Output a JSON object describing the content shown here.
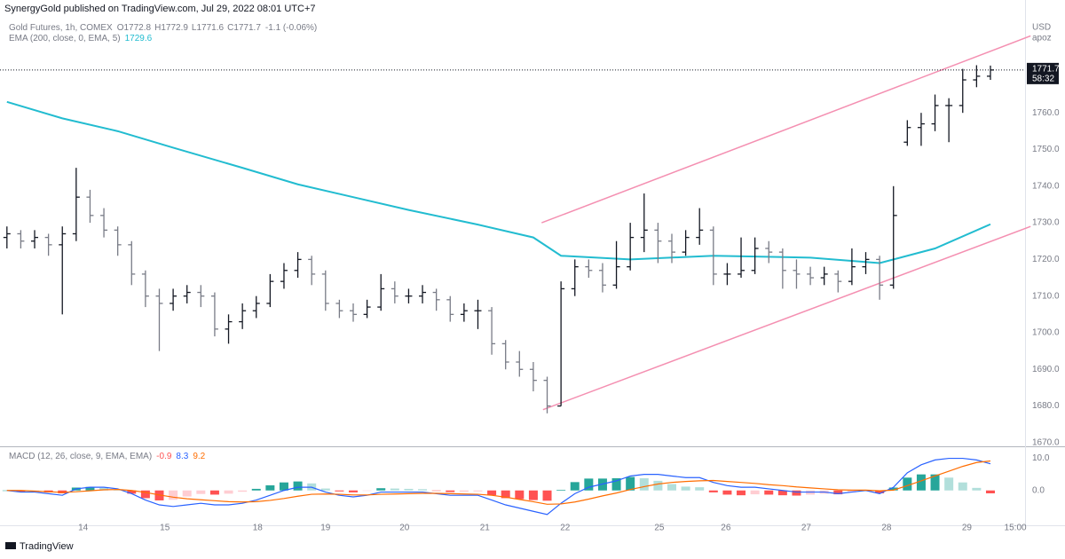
{
  "header": {
    "publisher": "SynergyGold published on TradingView.com, Jul 29, 2022 08:01 UTC+7",
    "brand": "TradingView"
  },
  "chart_data": [
    {
      "type": "ohlc",
      "title": "Gold Futures, 1h, COMEX",
      "ohlc_legend": [
        {
          "label": "O",
          "value": 1772.8
        },
        {
          "label": "H",
          "value": 1772.9
        },
        {
          "label": "L",
          "value": 1771.6
        },
        {
          "label": "C",
          "value": 1771.7
        }
      ],
      "change": "-1.1 (-0.06%)",
      "currency": "USD",
      "user": "apoz",
      "countdown": "58:32",
      "up_color": "#131722",
      "down_color": "#787b86",
      "open": [
        1726,
        1727,
        1725,
        1726,
        1724,
        1727,
        1737,
        1732,
        1728,
        1724,
        1716,
        1710,
        1708,
        1710,
        1711,
        1710,
        1701,
        1703,
        1706,
        1708,
        1714,
        1717,
        1720,
        1716,
        1708,
        1706,
        1705,
        1707,
        1712,
        1710,
        1710,
        1711,
        1709,
        1705,
        1706,
        1706,
        1697,
        1692,
        1690,
        1687,
        1680,
        1712,
        1718,
        1717,
        1713,
        1718,
        1726,
        1728,
        1725,
        1722,
        1726,
        1728,
        1716,
        1716,
        1717,
        1723,
        1722,
        1717,
        1716,
        1715,
        1716,
        1714,
        1718,
        1720,
        1713,
        1752,
        1756,
        1757,
        1762,
        1762,
        1769,
        1770
      ],
      "high": [
        1729,
        1728,
        1728,
        1727,
        1729,
        1745,
        1739,
        1734,
        1729,
        1725,
        1717,
        1712,
        1712,
        1713,
        1713,
        1711,
        1705,
        1708,
        1710,
        1716,
        1719,
        1722,
        1721,
        1717,
        1709,
        1708,
        1709,
        1716,
        1714,
        1712,
        1713,
        1712,
        1710,
        1708,
        1709,
        1707,
        1698,
        1695,
        1692,
        1688,
        1714,
        1720,
        1720,
        1719,
        1725,
        1730,
        1738,
        1730,
        1727,
        1728,
        1734,
        1729,
        1719,
        1726,
        1726,
        1725,
        1723,
        1720,
        1718,
        1718,
        1717,
        1723,
        1722,
        1721,
        1740,
        1758,
        1760,
        1765,
        1764,
        1772,
        1773,
        1772.9
      ],
      "low": [
        1723,
        1723,
        1723,
        1721,
        1705,
        1725,
        1730,
        1726,
        1721,
        1713,
        1707,
        1695,
        1706,
        1708,
        1707,
        1699,
        1697,
        1701,
        1704,
        1707,
        1712,
        1715,
        1713,
        1706,
        1704,
        1703,
        1704,
        1706,
        1708,
        1708,
        1708,
        1706,
        1703,
        1703,
        1701,
        1694,
        1690,
        1688,
        1684,
        1678,
        1680,
        1710,
        1715,
        1711,
        1712,
        1717,
        1722,
        1719,
        1719,
        1721,
        1724,
        1713,
        1713,
        1715,
        1716,
        1719,
        1712,
        1712,
        1713,
        1713,
        1711,
        1713,
        1716,
        1709,
        1712,
        1751,
        1751,
        1755,
        1752,
        1760,
        1767,
        1769
      ],
      "close": [
        1727,
        1725,
        1726,
        1724,
        1727,
        1737,
        1732,
        1728,
        1724,
        1716,
        1710,
        1708,
        1710,
        1711,
        1710,
        1701,
        1703,
        1706,
        1708,
        1714,
        1717,
        1720,
        1716,
        1708,
        1706,
        1705,
        1707,
        1712,
        1710,
        1710,
        1711,
        1709,
        1705,
        1706,
        1706,
        1697,
        1692,
        1690,
        1687,
        1680,
        1712,
        1718,
        1717,
        1713,
        1718,
        1726,
        1728,
        1725,
        1722,
        1726,
        1728,
        1716,
        1716,
        1717,
        1723,
        1722,
        1717,
        1716,
        1715,
        1716,
        1714,
        1718,
        1720,
        1713,
        1732,
        1756,
        1757,
        1762,
        1762,
        1769,
        1770,
        1771.7
      ],
      "ema": {
        "name": "EMA (200, close, 0, EMA, 5)",
        "color": "#22bcd0",
        "x": [
          0,
          4,
          8,
          12,
          17,
          21,
          25,
          29,
          34,
          38,
          40,
          45,
          51,
          58,
          63,
          67,
          71
        ],
        "values": [
          1763,
          1758.5,
          1755,
          1750.5,
          1745,
          1740.5,
          1737,
          1733.5,
          1729.5,
          1726,
          1721,
          1720,
          1721,
          1720.5,
          1719,
          1723,
          1729.6
        ]
      },
      "trendlines": [
        {
          "color": "#f48fb1",
          "x": [
            38.7,
            73.9
          ],
          "values": [
            1679,
            1729
          ]
        },
        {
          "color": "#f48fb1",
          "x": [
            38.6,
            73.9
          ],
          "values": [
            1730,
            1781
          ]
        }
      ],
      "xlim": [
        -0.5,
        73.5
      ],
      "xticks": [
        {
          "value": 5.5,
          "label": "14"
        },
        {
          "value": 11.4,
          "label": "15"
        },
        {
          "value": 18.1,
          "label": "18"
        },
        {
          "value": 23.0,
          "label": "19"
        },
        {
          "value": 28.7,
          "label": "20"
        },
        {
          "value": 34.5,
          "label": "21"
        },
        {
          "value": 40.3,
          "label": "22"
        },
        {
          "value": 47.1,
          "label": "25"
        },
        {
          "value": 51.9,
          "label": "26"
        },
        {
          "value": 57.7,
          "label": "27"
        },
        {
          "value": 63.5,
          "label": "28"
        },
        {
          "value": 69.3,
          "label": "29"
        },
        {
          "value": 72.8,
          "label": "15:00"
        }
      ],
      "ylim": [
        1669,
        1790.8
      ],
      "yticks": [
        {
          "value": 1670,
          "label": "1670.0"
        },
        {
          "value": 1680,
          "label": "1680.0"
        },
        {
          "value": 1690,
          "label": "1690.0"
        },
        {
          "value": 1700,
          "label": "1700.0"
        },
        {
          "value": 1710,
          "label": "1710.0"
        },
        {
          "value": 1720,
          "label": "1720.0"
        },
        {
          "value": 1730,
          "label": "1730.0"
        },
        {
          "value": 1740,
          "label": "1740.0"
        },
        {
          "value": 1750,
          "label": "1750.0"
        },
        {
          "value": 1760,
          "label": "1760.0"
        }
      ],
      "grid": false
    },
    {
      "type": "macd",
      "title": "MACD (12, 26, close, 9, EMA, EMA)",
      "histogram": [
        0,
        -0.5,
        -0.3,
        -0.6,
        -0.9,
        0.9,
        1.1,
        0.8,
        0.2,
        -1,
        -2.4,
        -3.1,
        -2.9,
        -1.9,
        -1.1,
        -1.3,
        -1,
        -0.4,
        0.5,
        1.6,
        2.5,
        2.8,
        2.2,
        0.6,
        -0.3,
        -0.6,
        -0.1,
        0.7,
        0.6,
        0.5,
        0.4,
        -0.1,
        -0.5,
        -0.4,
        -0.3,
        -1.5,
        -2.4,
        -2.7,
        -3,
        -3.2,
        0.2,
        2.6,
        3.7,
        3.7,
        3.8,
        4.2,
        3.8,
        3,
        2,
        1.2,
        1,
        -0.6,
        -1.3,
        -1.5,
        -1.2,
        -1.3,
        -1.5,
        -1.6,
        -1.3,
        -1,
        -1.2,
        -0.6,
        -0.1,
        -0.9,
        0.9,
        4,
        5,
        5,
        4,
        2.5,
        0.8,
        -0.9
      ],
      "hist_colors": {
        "up_rising": "#26a69a",
        "up_falling": "#b2dfdb",
        "down_falling": "#ff5252",
        "down_rising": "#ffcdd2"
      },
      "series": [
        {
          "color": "#2962ff",
          "values": [
            0,
            -0.5,
            -0.5,
            -1,
            -1.5,
            0.5,
            1,
            1,
            0.5,
            -1,
            -3,
            -4.5,
            -5,
            -4.5,
            -4,
            -4.5,
            -4.5,
            -4,
            -3,
            -1.5,
            0,
            1,
            1,
            -0.5,
            -1.5,
            -2,
            -1.5,
            -0.5,
            -0.5,
            -0.5,
            -0.5,
            -1,
            -1.5,
            -1.5,
            -1.5,
            -3,
            -4.5,
            -5.5,
            -6.5,
            -7.5,
            -4,
            -1,
            1,
            2,
            3,
            4.5,
            5,
            5,
            4.5,
            4,
            4,
            2.5,
            1.5,
            1,
            1,
            0.5,
            0,
            -0.5,
            -0.5,
            -0.5,
            -1,
            -0.5,
            0,
            -1,
            1,
            5.5,
            8,
            9.5,
            10,
            10,
            9.5,
            8.3
          ]
        },
        {
          "color": "#ff6d00",
          "values": [
            0,
            0,
            -0.2,
            -0.4,
            -0.6,
            -0.4,
            -0.1,
            0.2,
            0.3,
            0,
            -0.6,
            -1.4,
            -2.1,
            -2.6,
            -2.9,
            -3.2,
            -3.5,
            -3.6,
            -3.5,
            -3.1,
            -2.5,
            -1.8,
            -1.2,
            -1.1,
            -1.2,
            -1.4,
            -1.4,
            -1.2,
            -1.1,
            -1,
            -0.9,
            -0.9,
            -1,
            -1.1,
            -1.2,
            -1.5,
            -2.1,
            -2.8,
            -3.5,
            -4.3,
            -4.2,
            -3.6,
            -2.7,
            -1.7,
            -0.8,
            0.3,
            1.2,
            2,
            2.5,
            2.8,
            3,
            3.1,
            2.8,
            2.5,
            2.2,
            1.8,
            1.5,
            1.1,
            0.8,
            0.5,
            0.2,
            0.1,
            0.1,
            -0.1,
            0.1,
            1.5,
            3,
            4.5,
            6,
            7.5,
            8.7,
            9.2
          ]
        }
      ],
      "ylim": [
        -10.3,
        13.2
      ],
      "yticks": [
        {
          "value": 10,
          "label": "10.0"
        },
        {
          "value": 0,
          "label": "0.0"
        }
      ]
    }
  ]
}
